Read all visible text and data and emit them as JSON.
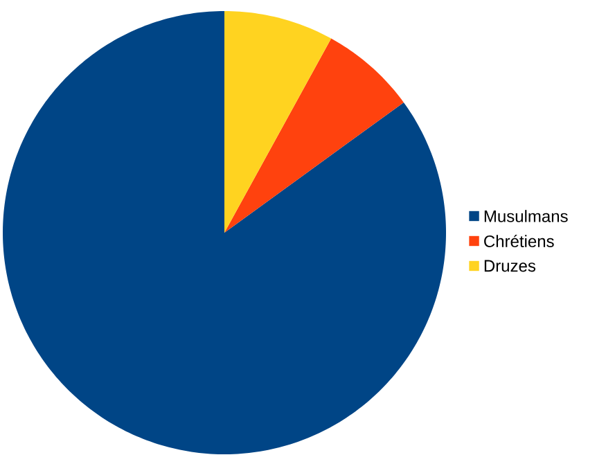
{
  "chart_data": {
    "type": "pie",
    "categories": [
      "Musulmans",
      "Chrétiens",
      "Druzes"
    ],
    "values": [
      85,
      7,
      8
    ],
    "colors": [
      "#004586",
      "#ff420e",
      "#ffd320"
    ],
    "legend": "right"
  }
}
